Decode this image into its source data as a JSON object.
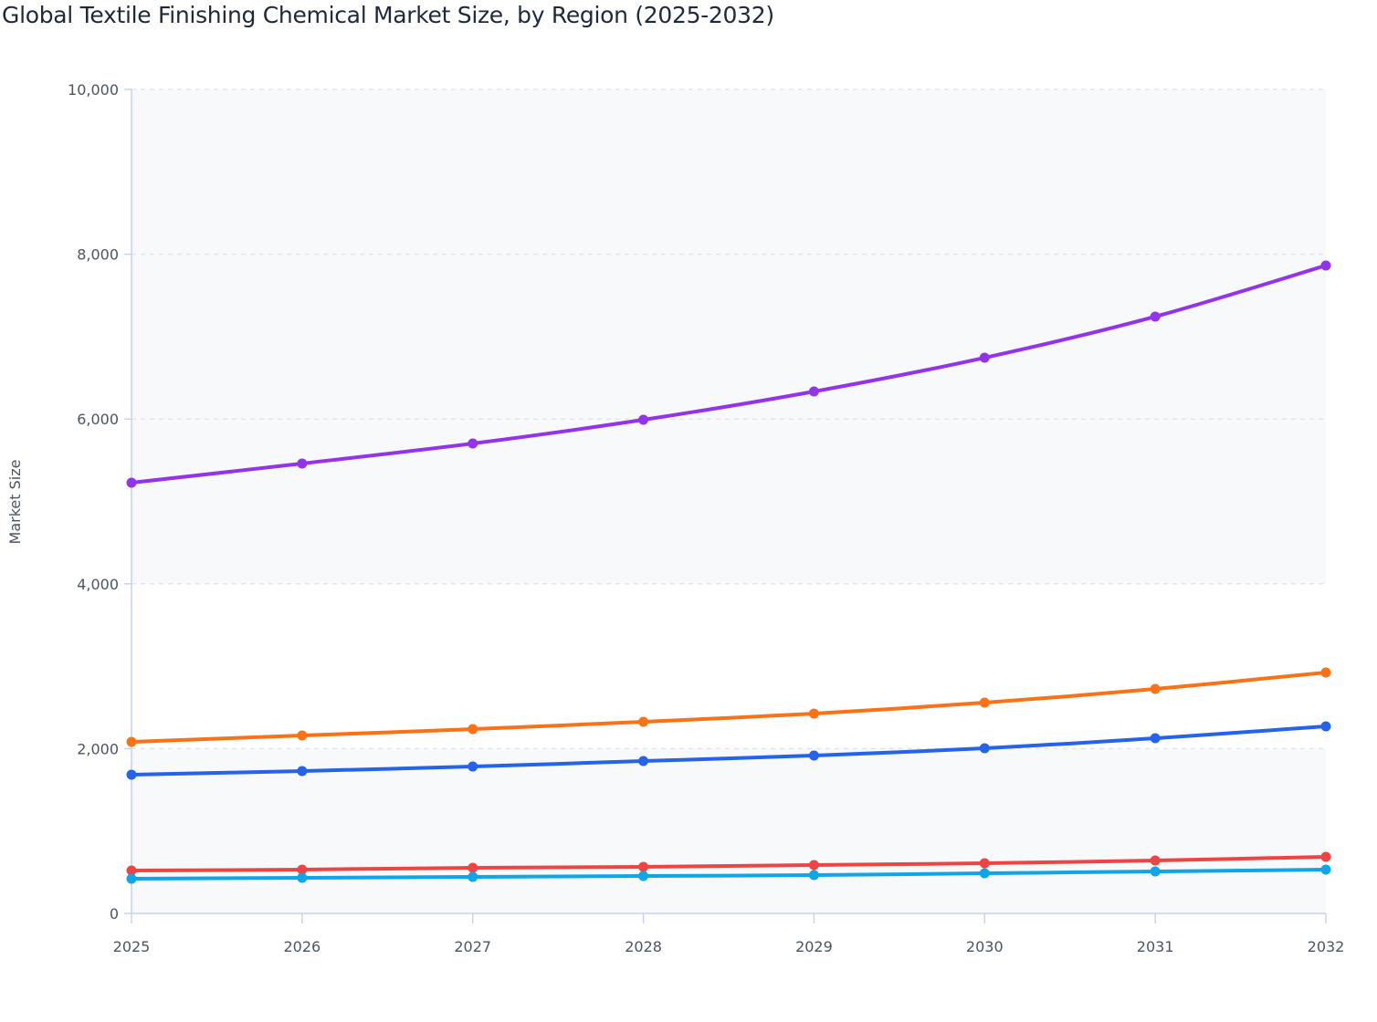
{
  "chart_data": {
    "type": "line",
    "title": "Global Textile Finishing Chemical Market Size, by Region (2025-2032)",
    "xlabel": "",
    "ylabel": "Market Size",
    "x": [
      "2025",
      "2026",
      "2027",
      "2028",
      "2029",
      "2030",
      "2031",
      "2032"
    ],
    "ylim": [
      0,
      10000
    ],
    "yticks": [
      "0",
      "2,000",
      "4,000",
      "6,000",
      "8,000",
      "10,000"
    ],
    "grid": true,
    "legend": "none",
    "series": [
      {
        "color": "#9333ea",
        "values": [
          5227,
          5460,
          5703,
          5991,
          6334,
          6744,
          7243,
          7863
        ]
      },
      {
        "color": "#f97316",
        "values": [
          2082,
          2159,
          2237,
          2326,
          2425,
          2558,
          2724,
          2924
        ]
      },
      {
        "color": "#2563eb",
        "values": [
          1683,
          1728,
          1783,
          1849,
          1916,
          2004,
          2126,
          2270
        ]
      },
      {
        "color": "#ef4444",
        "values": [
          520,
          532,
          554,
          565,
          587,
          609,
          642,
          687
        ]
      },
      {
        "color": "#0ea5e9",
        "values": [
          421,
          432,
          443,
          454,
          465,
          487,
          509,
          532
        ]
      }
    ]
  }
}
